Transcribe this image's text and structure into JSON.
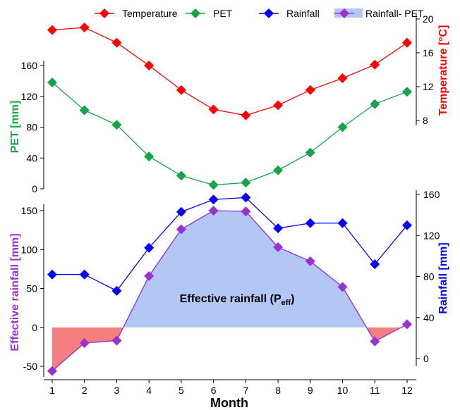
{
  "colors": {
    "temperature": "#ff0000",
    "pet": "#16a34a",
    "rainfall": "#0000ff",
    "effective": "#9b30d0",
    "positive_fill": "#b3c7f5",
    "negative_fill": "#f47f7f",
    "axis": "#000000"
  },
  "legend": {
    "placement": "top",
    "items": [
      {
        "label": "Temperature",
        "series": "temperature",
        "marker": "diamond"
      },
      {
        "label": "PET",
        "series": "pet",
        "marker": "diamond"
      },
      {
        "label": "Rainfall",
        "series": "rainfall",
        "marker": "diamond"
      },
      {
        "label": "Rainfall- PET",
        "series": "effective",
        "marker": "diamond-area"
      }
    ]
  },
  "annotation": {
    "text": "Effective rainfall (P",
    "subscript": "eff",
    "suffix": ")"
  },
  "chart_data": [
    {
      "type": "line",
      "panel": "top",
      "x": [
        1,
        2,
        3,
        4,
        5,
        6,
        7,
        8,
        9,
        10,
        11,
        12
      ],
      "xlabel": "Month",
      "left_axis": {
        "label": "PET [mm]",
        "range": [
          0,
          160
        ],
        "ticks": [
          0,
          40,
          80,
          120,
          160
        ]
      },
      "right_axis": {
        "label": "Temperature [°C]",
        "range": [
          8,
          20
        ],
        "ticks": [
          8,
          12,
          16,
          20
        ]
      },
      "series": [
        {
          "name": "PET",
          "axis": "left",
          "key": "pet",
          "values": [
            138,
            102,
            83,
            42,
            17,
            5,
            8,
            24,
            47,
            80,
            110,
            126
          ]
        },
        {
          "name": "Temperature",
          "axis": "right",
          "key": "temperature",
          "values": [
            18.7,
            19.0,
            17.2,
            14.5,
            11.6,
            9.3,
            8.6,
            9.8,
            11.6,
            13.0,
            14.6,
            17.2
          ]
        }
      ]
    },
    {
      "type": "line",
      "panel": "bottom",
      "x": [
        1,
        2,
        3,
        4,
        5,
        6,
        7,
        8,
        9,
        10,
        11,
        12
      ],
      "xlabel": "Month",
      "xticks": [
        1,
        2,
        3,
        4,
        5,
        6,
        7,
        8,
        9,
        10,
        11,
        12
      ],
      "left_axis": {
        "label": "Effective rainfall [mm]",
        "range": [
          -60,
          160
        ],
        "ticks": [
          -50,
          0,
          50,
          100,
          150
        ]
      },
      "right_axis": {
        "label": "Rainfall [mm]",
        "range": [
          -10,
          160
        ],
        "ticks": [
          0,
          40,
          80,
          120,
          160
        ]
      },
      "series": [
        {
          "name": "Rainfall",
          "axis": "right",
          "key": "rainfall",
          "values": [
            82,
            82,
            66,
            108,
            143,
            155,
            157,
            127,
            132,
            132,
            92,
            130
          ]
        },
        {
          "name": "Rainfall- PET",
          "axis": "left",
          "key": "effective",
          "values": [
            -56,
            -20,
            -17,
            66,
            126,
            150,
            149,
            103,
            85,
            52,
            -18,
            4
          ]
        }
      ]
    }
  ]
}
